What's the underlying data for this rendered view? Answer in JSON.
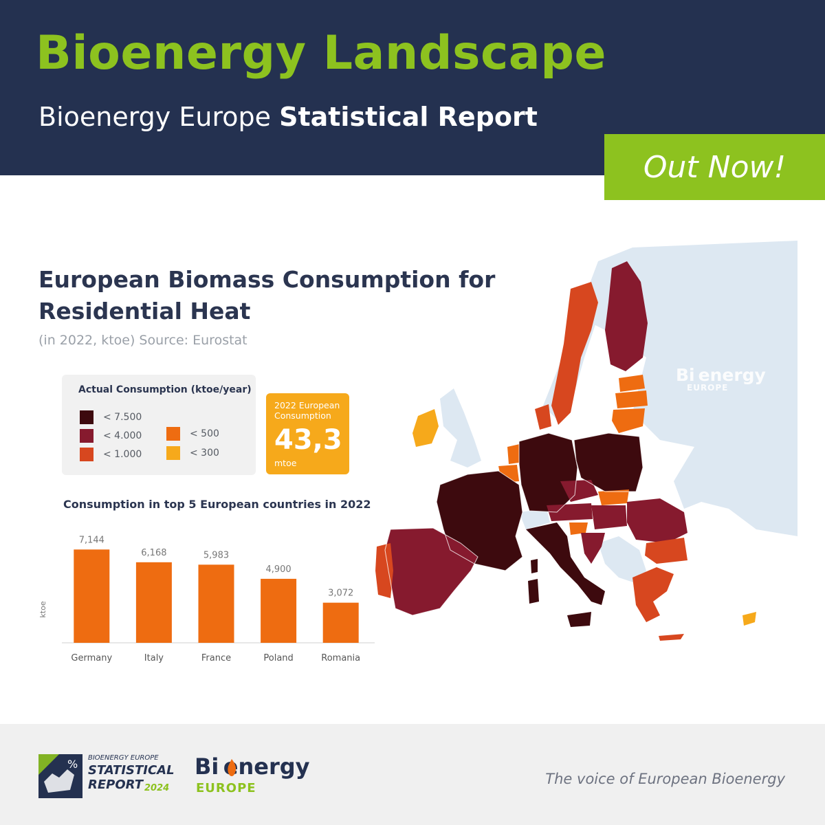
{
  "header": {
    "title": "Bioenergy Landscape",
    "subtitle_regular": "Bioenergy Europe ",
    "subtitle_bold": "Statistical Report",
    "cta": "Out Now!"
  },
  "chart": {
    "title": "European Biomass Consumption for Residential Heat",
    "source": "(in 2022, ktoe) Source: Eurostat"
  },
  "legend": {
    "title": "Actual Consumption (ktoe/year)",
    "items": [
      {
        "label": "< 7.500",
        "color": "#3d0a0e"
      },
      {
        "label": "< 4.000",
        "color": "#861a2e"
      },
      {
        "label": "< 1.000",
        "color": "#d7471f"
      },
      {
        "label": "< 500",
        "color": "#ee6c11"
      },
      {
        "label": "< 300",
        "color": "#f6a91b"
      }
    ]
  },
  "total": {
    "label": "2022 European Consumption",
    "value": "43,3",
    "unit": "mtoe"
  },
  "map": {
    "watermark_main": "Bi energy",
    "watermark_sub": "EUROPE",
    "background_color": "#dde8f2",
    "non_eu_color": "#dde8f2"
  },
  "chart_data": {
    "type": "bar",
    "title": "Consumption in top 5 European countries in 2022",
    "categories": [
      "Germany",
      "Italy",
      "France",
      "Poland",
      "Romania"
    ],
    "values": [
      7144,
      6168,
      5983,
      4900,
      3072
    ],
    "value_labels": [
      "7,144",
      "6,168",
      "5,983",
      "4,900",
      "3,072"
    ],
    "xlabel": "",
    "ylabel": "ktoe",
    "ylim": [
      0,
      8000
    ],
    "color": "#ee6c11",
    "grid": false
  },
  "footer": {
    "report_kicker": "BIOENERGY EUROPE",
    "report_line1": "STATISTICAL",
    "report_line2": "REPORT",
    "report_year": "2024",
    "logo_main": "Bi energy",
    "logo_sub": "EUROPE",
    "tagline": "The voice of European Bioenergy"
  }
}
